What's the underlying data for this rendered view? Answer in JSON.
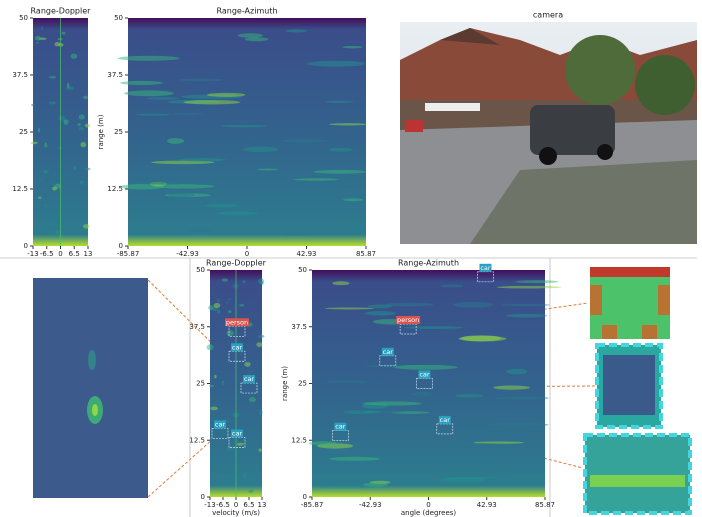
{
  "chart_data": [
    {
      "type": "heatmap",
      "title": "Range-Doppler",
      "xlim": [
        -13,
        13
      ],
      "ylim": [
        0,
        50
      ],
      "xticks": [
        -13,
        -6.5,
        0,
        6.5,
        13
      ],
      "yticks": [
        0,
        12.5,
        25,
        37.5,
        50
      ]
    },
    {
      "type": "heatmap",
      "title": "Range-Azimuth",
      "ylabel": "range (m)",
      "xlim": [
        -85.87,
        85.87
      ],
      "ylim": [
        0,
        50
      ],
      "xticks": [
        -85.87,
        -42.93,
        0,
        42.93,
        85.87
      ],
      "yticks": [
        0,
        12.5,
        25,
        37.5,
        50
      ]
    },
    {
      "type": "heatmap",
      "title": "Range-Doppler",
      "xlabel": "velocity (m/s)",
      "xlim": [
        -13,
        13
      ],
      "ylim": [
        0,
        50
      ],
      "xticks": [
        -13,
        -6.5,
        0,
        6.5,
        13
      ],
      "yticks": [
        0,
        12.5,
        25,
        37.5,
        50
      ],
      "detections": [
        {
          "label": "person",
          "x": 0.5,
          "y": 36.5
        },
        {
          "label": "car",
          "x": 0.5,
          "y": 31
        },
        {
          "label": "car",
          "x": 6.5,
          "y": 24
        },
        {
          "label": "car",
          "x": -8,
          "y": 14
        },
        {
          "label": "car",
          "x": 0.5,
          "y": 12
        }
      ]
    },
    {
      "type": "heatmap",
      "title": "Range-Azimuth",
      "xlabel": "angle (degrees)",
      "ylabel": "range (m)",
      "xlim": [
        -85.87,
        85.87
      ],
      "ylim": [
        0,
        50
      ],
      "xticks": [
        -85.87,
        -42.93,
        0,
        42.93,
        85.87
      ],
      "yticks": [
        0,
        12.5,
        25,
        37.5,
        50
      ],
      "detections": [
        {
          "label": "car",
          "x": 42,
          "y": 48.5
        },
        {
          "label": "person",
          "x": -15,
          "y": 37
        },
        {
          "label": "car",
          "x": -30,
          "y": 30
        },
        {
          "label": "car",
          "x": -3,
          "y": 25
        },
        {
          "label": "car",
          "x": -65,
          "y": 13.5
        },
        {
          "label": "car",
          "x": 12,
          "y": 15
        }
      ]
    }
  ],
  "camera": {
    "title": "camera"
  }
}
